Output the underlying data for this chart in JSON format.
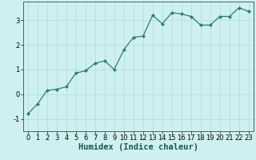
{
  "x": [
    0,
    1,
    2,
    3,
    4,
    5,
    6,
    7,
    8,
    9,
    10,
    11,
    12,
    13,
    14,
    15,
    16,
    17,
    18,
    19,
    20,
    21,
    22,
    23
  ],
  "y": [
    -0.8,
    -0.4,
    0.15,
    0.2,
    0.3,
    0.85,
    0.95,
    1.25,
    1.35,
    1.0,
    1.8,
    2.3,
    2.35,
    3.2,
    2.85,
    3.3,
    3.25,
    3.15,
    2.8,
    2.8,
    3.15,
    3.15,
    3.5,
    3.35
  ],
  "line_color": "#2e7d6e",
  "marker": "D",
  "marker_size": 2,
  "bg_color": "#cff0f0",
  "grid_color": "#aadddd",
  "xlabel": "Humidex (Indice chaleur)",
  "xlabel_fontsize": 7.5,
  "tick_fontsize": 6,
  "xlim": [
    -0.5,
    23.5
  ],
  "ylim": [
    -1.5,
    3.75
  ],
  "yticks": [
    -1,
    0,
    1,
    2,
    3
  ],
  "xticks": [
    0,
    1,
    2,
    3,
    4,
    5,
    6,
    7,
    8,
    9,
    10,
    11,
    12,
    13,
    14,
    15,
    16,
    17,
    18,
    19,
    20,
    21,
    22,
    23
  ]
}
